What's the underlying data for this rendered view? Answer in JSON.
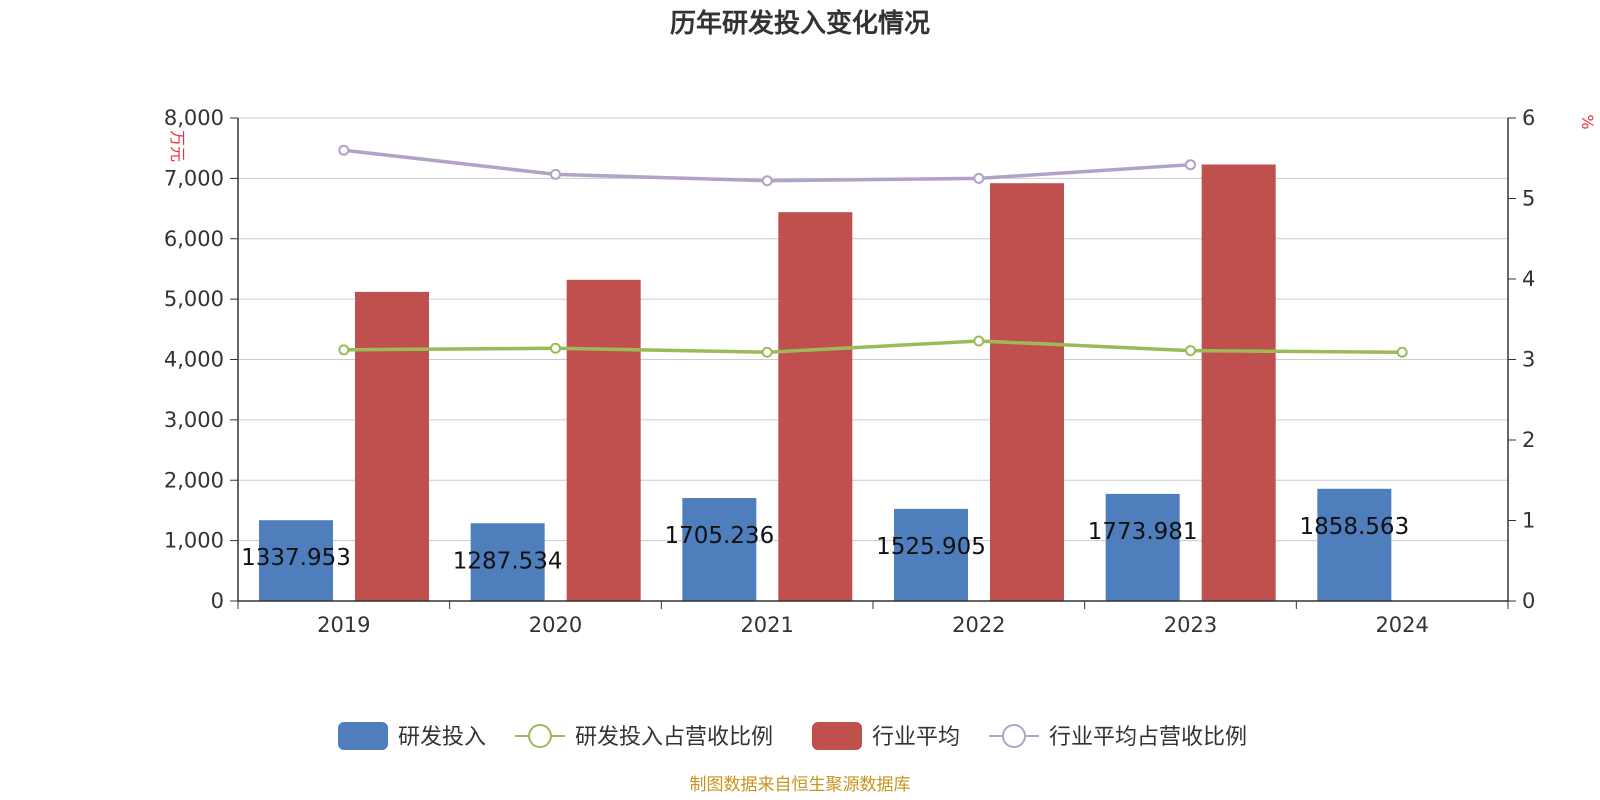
{
  "chart_data": {
    "type": "bar",
    "title": "历年研发投入变化情况",
    "categories": [
      "2019",
      "2020",
      "2021",
      "2022",
      "2023",
      "2024"
    ],
    "y_left": {
      "unit_label": "万元",
      "ticks": [
        "0",
        "1,000",
        "2,000",
        "3,000",
        "4,000",
        "5,000",
        "6,000",
        "7,000",
        "8,000"
      ],
      "ylim": [
        0,
        8000
      ]
    },
    "y_right": {
      "unit_label": "%",
      "ticks": [
        "0",
        "1",
        "2",
        "3",
        "4",
        "5",
        "6"
      ],
      "ylim": [
        0,
        6
      ]
    },
    "grid": true,
    "legend_position": "bottom",
    "series": [
      {
        "name": "研发投入",
        "kind": "bar",
        "axis": "left",
        "color": "#4f7ebd",
        "values": [
          1337.953,
          1287.534,
          1705.236,
          1525.905,
          1773.981,
          1858.563
        ],
        "labels": [
          "1337.953",
          "1287.534",
          "1705.236",
          "1525.905",
          "1773.981",
          "1858.563"
        ]
      },
      {
        "name": "研发投入占营收比例",
        "kind": "line",
        "axis": "right",
        "color": "#9bbb59",
        "values": [
          3.12,
          3.14,
          3.09,
          3.23,
          3.11,
          3.09
        ]
      },
      {
        "name": "行业平均",
        "kind": "bar",
        "axis": "left",
        "color": "#c0504d",
        "values": [
          5120,
          5320,
          6440,
          6920,
          7230,
          null
        ]
      },
      {
        "name": "行业平均占营收比例",
        "kind": "line",
        "axis": "right",
        "color": "#b3a2c7",
        "values": [
          5.6,
          5.3,
          5.22,
          5.25,
          5.42,
          null
        ]
      }
    ],
    "source": "制图数据来自恒生聚源数据库"
  }
}
